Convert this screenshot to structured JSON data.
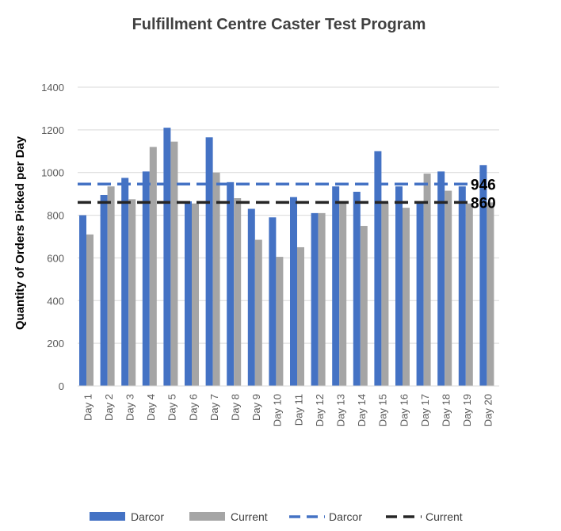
{
  "chart_data": {
    "type": "bar",
    "title": "Fulfillment  Centre Caster Test Program",
    "xlabel": "",
    "ylabel": "Quantity of Orders Picked per Day",
    "ylim": [
      0,
      1400
    ],
    "yticks": [
      "0",
      "200",
      "400",
      "600",
      "800",
      "1000",
      "1200",
      "1400"
    ],
    "grid": true,
    "legend_position": "bottom",
    "categories": [
      "Day 1",
      "Day 2",
      "Day 3",
      "Day 4",
      "Day 5",
      "Day 6",
      "Day 7",
      "Day 8",
      "Day 9",
      "Day 10",
      "Day 11",
      "Day 12",
      "Day 13",
      "Day 14",
      "Day 15",
      "Day 16",
      "Day 17",
      "Day 18",
      "Day 19",
      "Day 20"
    ],
    "series": [
      {
        "name": "Darcor",
        "color": "#4472c4",
        "values": [
          800,
          895,
          975,
          1005,
          1210,
          865,
          1165,
          955,
          830,
          790,
          885,
          810,
          935,
          910,
          1100,
          935,
          860,
          1005,
          935,
          1035
        ]
      },
      {
        "name": "Current",
        "color": "#a5a5a5",
        "values": [
          710,
          935,
          875,
          1120,
          1145,
          855,
          1000,
          880,
          685,
          605,
          650,
          810,
          860,
          750,
          860,
          835,
          995,
          915,
          855,
          860
        ]
      }
    ],
    "reference_lines": [
      {
        "name": "Darcor",
        "value": 946,
        "label": "946",
        "color": "#4472c4",
        "style": "dashed"
      },
      {
        "name": "Current",
        "value": 860,
        "label": "860",
        "color": "#262626",
        "style": "dashed"
      }
    ]
  }
}
